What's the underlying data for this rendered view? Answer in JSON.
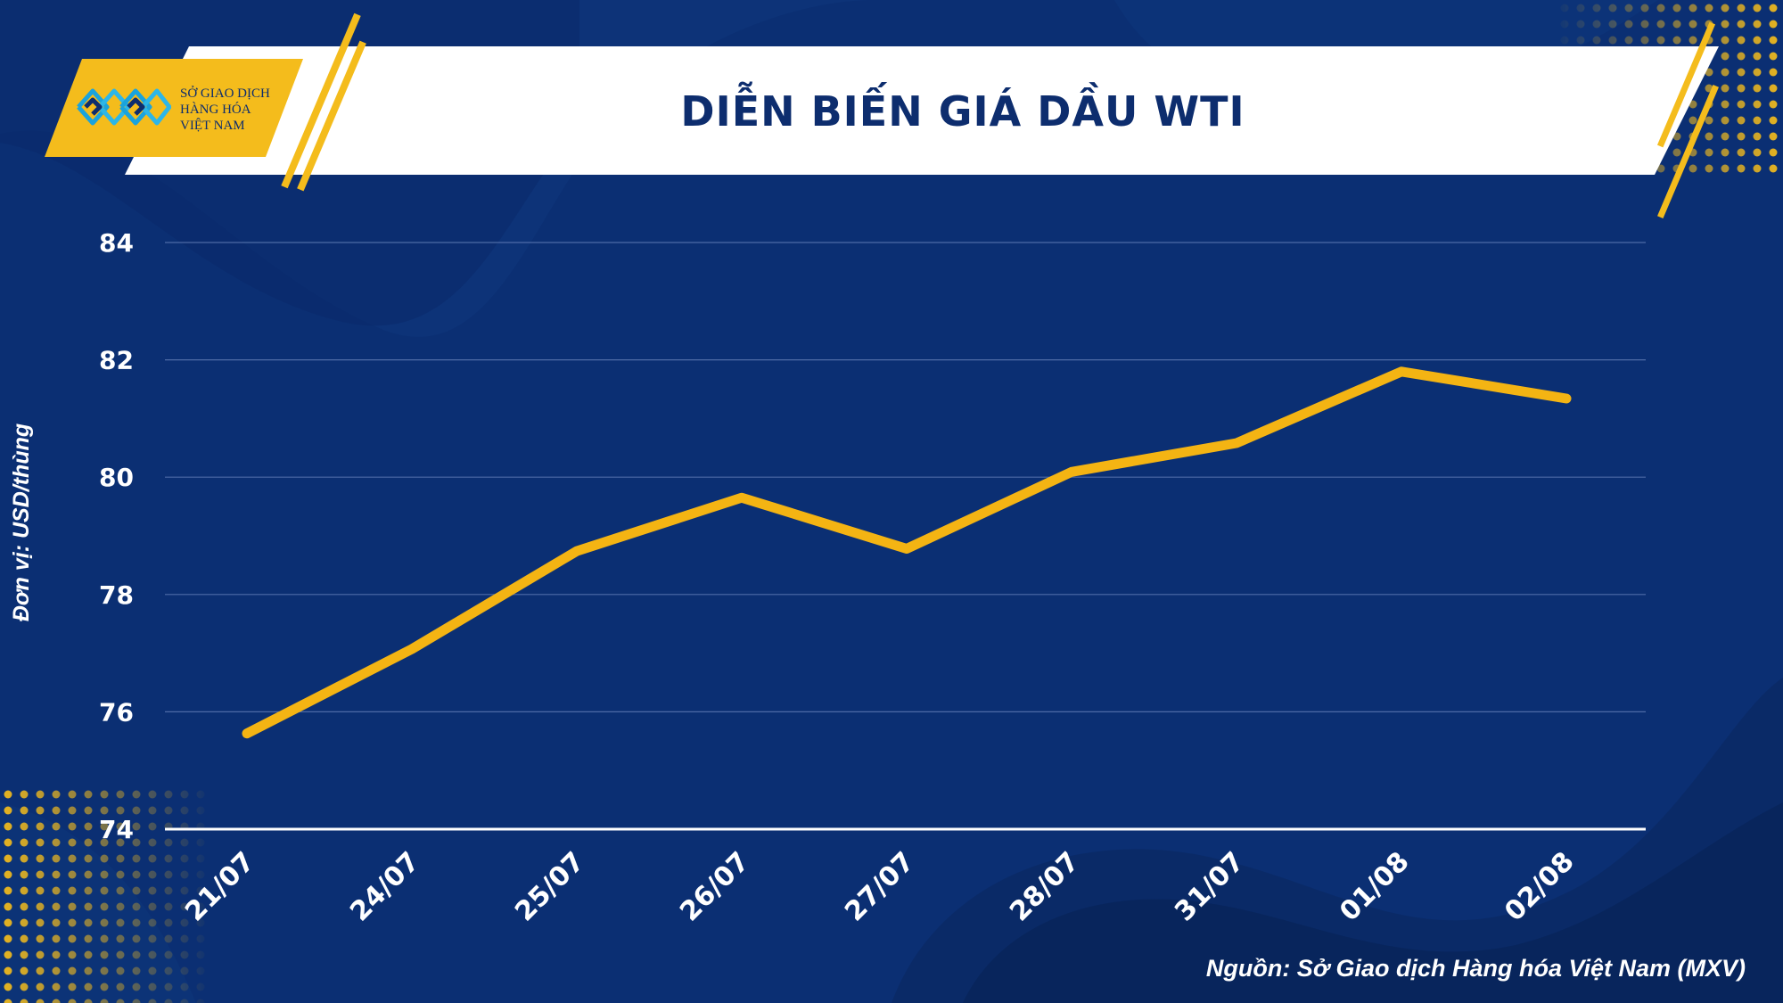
{
  "header": {
    "title": "DIỄN BIẾN GIÁ DẦU WTI",
    "logo": {
      "line1": "SỞ GIAO DỊCH",
      "line2": "HÀNG HÓA",
      "line3": "VIỆT NAM"
    }
  },
  "footer": {
    "source": "Nguồn: Sở Giao dịch Hàng hóa Việt Nam (MXV)"
  },
  "colors": {
    "background": "#0b2f73",
    "line": "#f4b413",
    "accent": "#f4bc1c",
    "title": "#0d2d6e"
  },
  "chart_data": {
    "type": "line",
    "title": "DIỄN BIẾN GIÁ DẦU WTI",
    "ylabel": "Đơn vị: USD/thùng",
    "xlabel": "",
    "categories": [
      "21/07",
      "24/07",
      "25/07",
      "26/07",
      "27/07",
      "28/07",
      "31/07",
      "01/08",
      "02/08"
    ],
    "series": [
      {
        "values": [
          75.63,
          77.07,
          78.74,
          79.65,
          78.78,
          80.09,
          80.58,
          81.8,
          81.34
        ]
      }
    ],
    "ylim": [
      74,
      84
    ],
    "yticks": [
      74,
      76,
      78,
      80,
      82,
      84
    ],
    "grid": true,
    "legend": "none"
  }
}
